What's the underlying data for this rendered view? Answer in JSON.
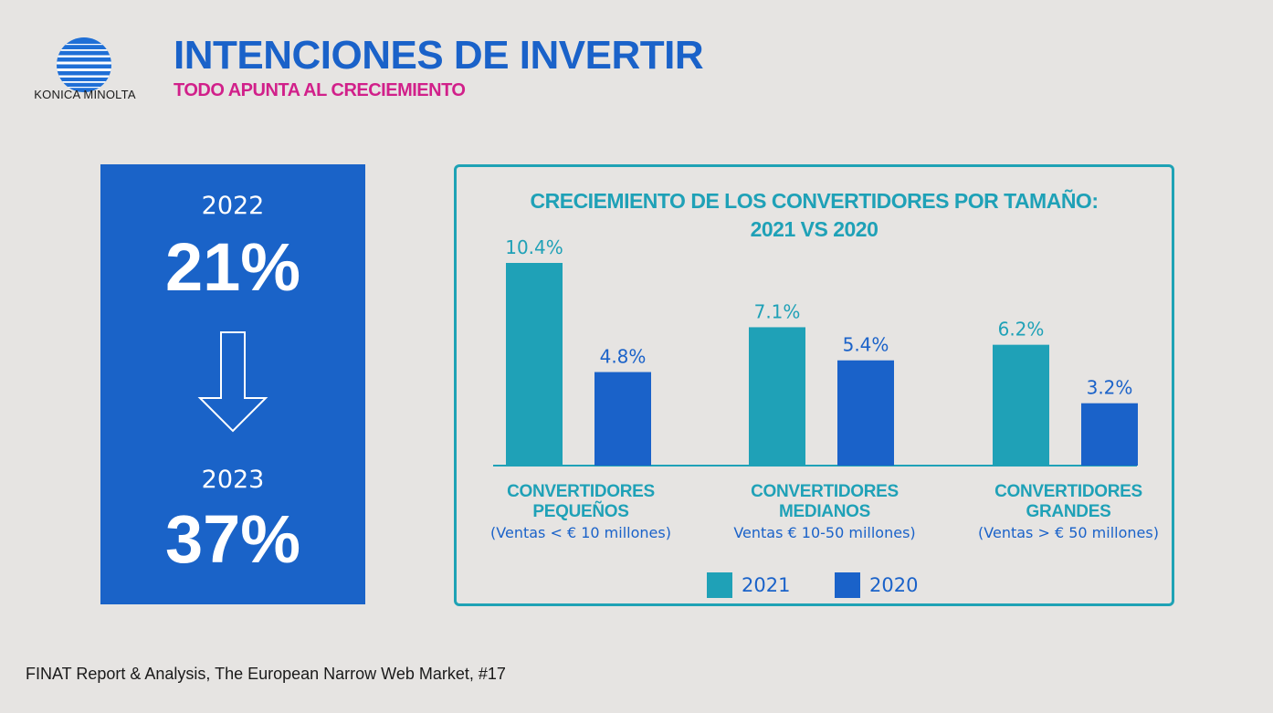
{
  "brand": {
    "name": "KONICA MINOLTA"
  },
  "header": {
    "title": "INTENCIONES DE INVERTIR",
    "subtitle": "TODO APUNTA AL CRECIEMIENTO"
  },
  "highlight": {
    "from_year": "2022",
    "from_value": "21%",
    "to_year": "2023",
    "to_value": "37%"
  },
  "chart_data": {
    "type": "bar",
    "title_line1": "CRECIEMIENTO DE LOS CONVERTIDORES POR TAMAÑO:",
    "title_line2": "2021 VS 2020",
    "categories": [
      {
        "name_line1": "CONVERTIDORES",
        "name_line2": "PEQUEÑOS",
        "sub": "(Ventas < € 10 millones)"
      },
      {
        "name_line1": "CONVERTIDORES",
        "name_line2": "MEDIANOS",
        "sub": "Ventas € 10-50 millones)"
      },
      {
        "name_line1": "CONVERTIDORES",
        "name_line2": "GRANDES",
        "sub": "(Ventas > € 50 millones)"
      }
    ],
    "series": [
      {
        "name": "2021",
        "color": "#1fa1b7",
        "values": [
          10.4,
          7.1,
          6.2
        ],
        "labels": [
          "10.4%",
          "7.1%",
          "6.2%"
        ]
      },
      {
        "name": "2020",
        "color": "#1a62c9",
        "values": [
          4.8,
          5.4,
          3.2
        ],
        "labels": [
          "4.8%",
          "5.4%",
          "3.2%"
        ]
      }
    ],
    "ylim": [
      0,
      10.4
    ],
    "grid": false,
    "legend": "bottom-center"
  },
  "colors": {
    "background": "#e6e4e2",
    "primary_blue": "#1a63c8",
    "teal": "#1fa1b7",
    "magenta": "#d1208a"
  },
  "footer": {
    "source": "FINAT Report & Analysis, The European Narrow Web Market, #17"
  }
}
